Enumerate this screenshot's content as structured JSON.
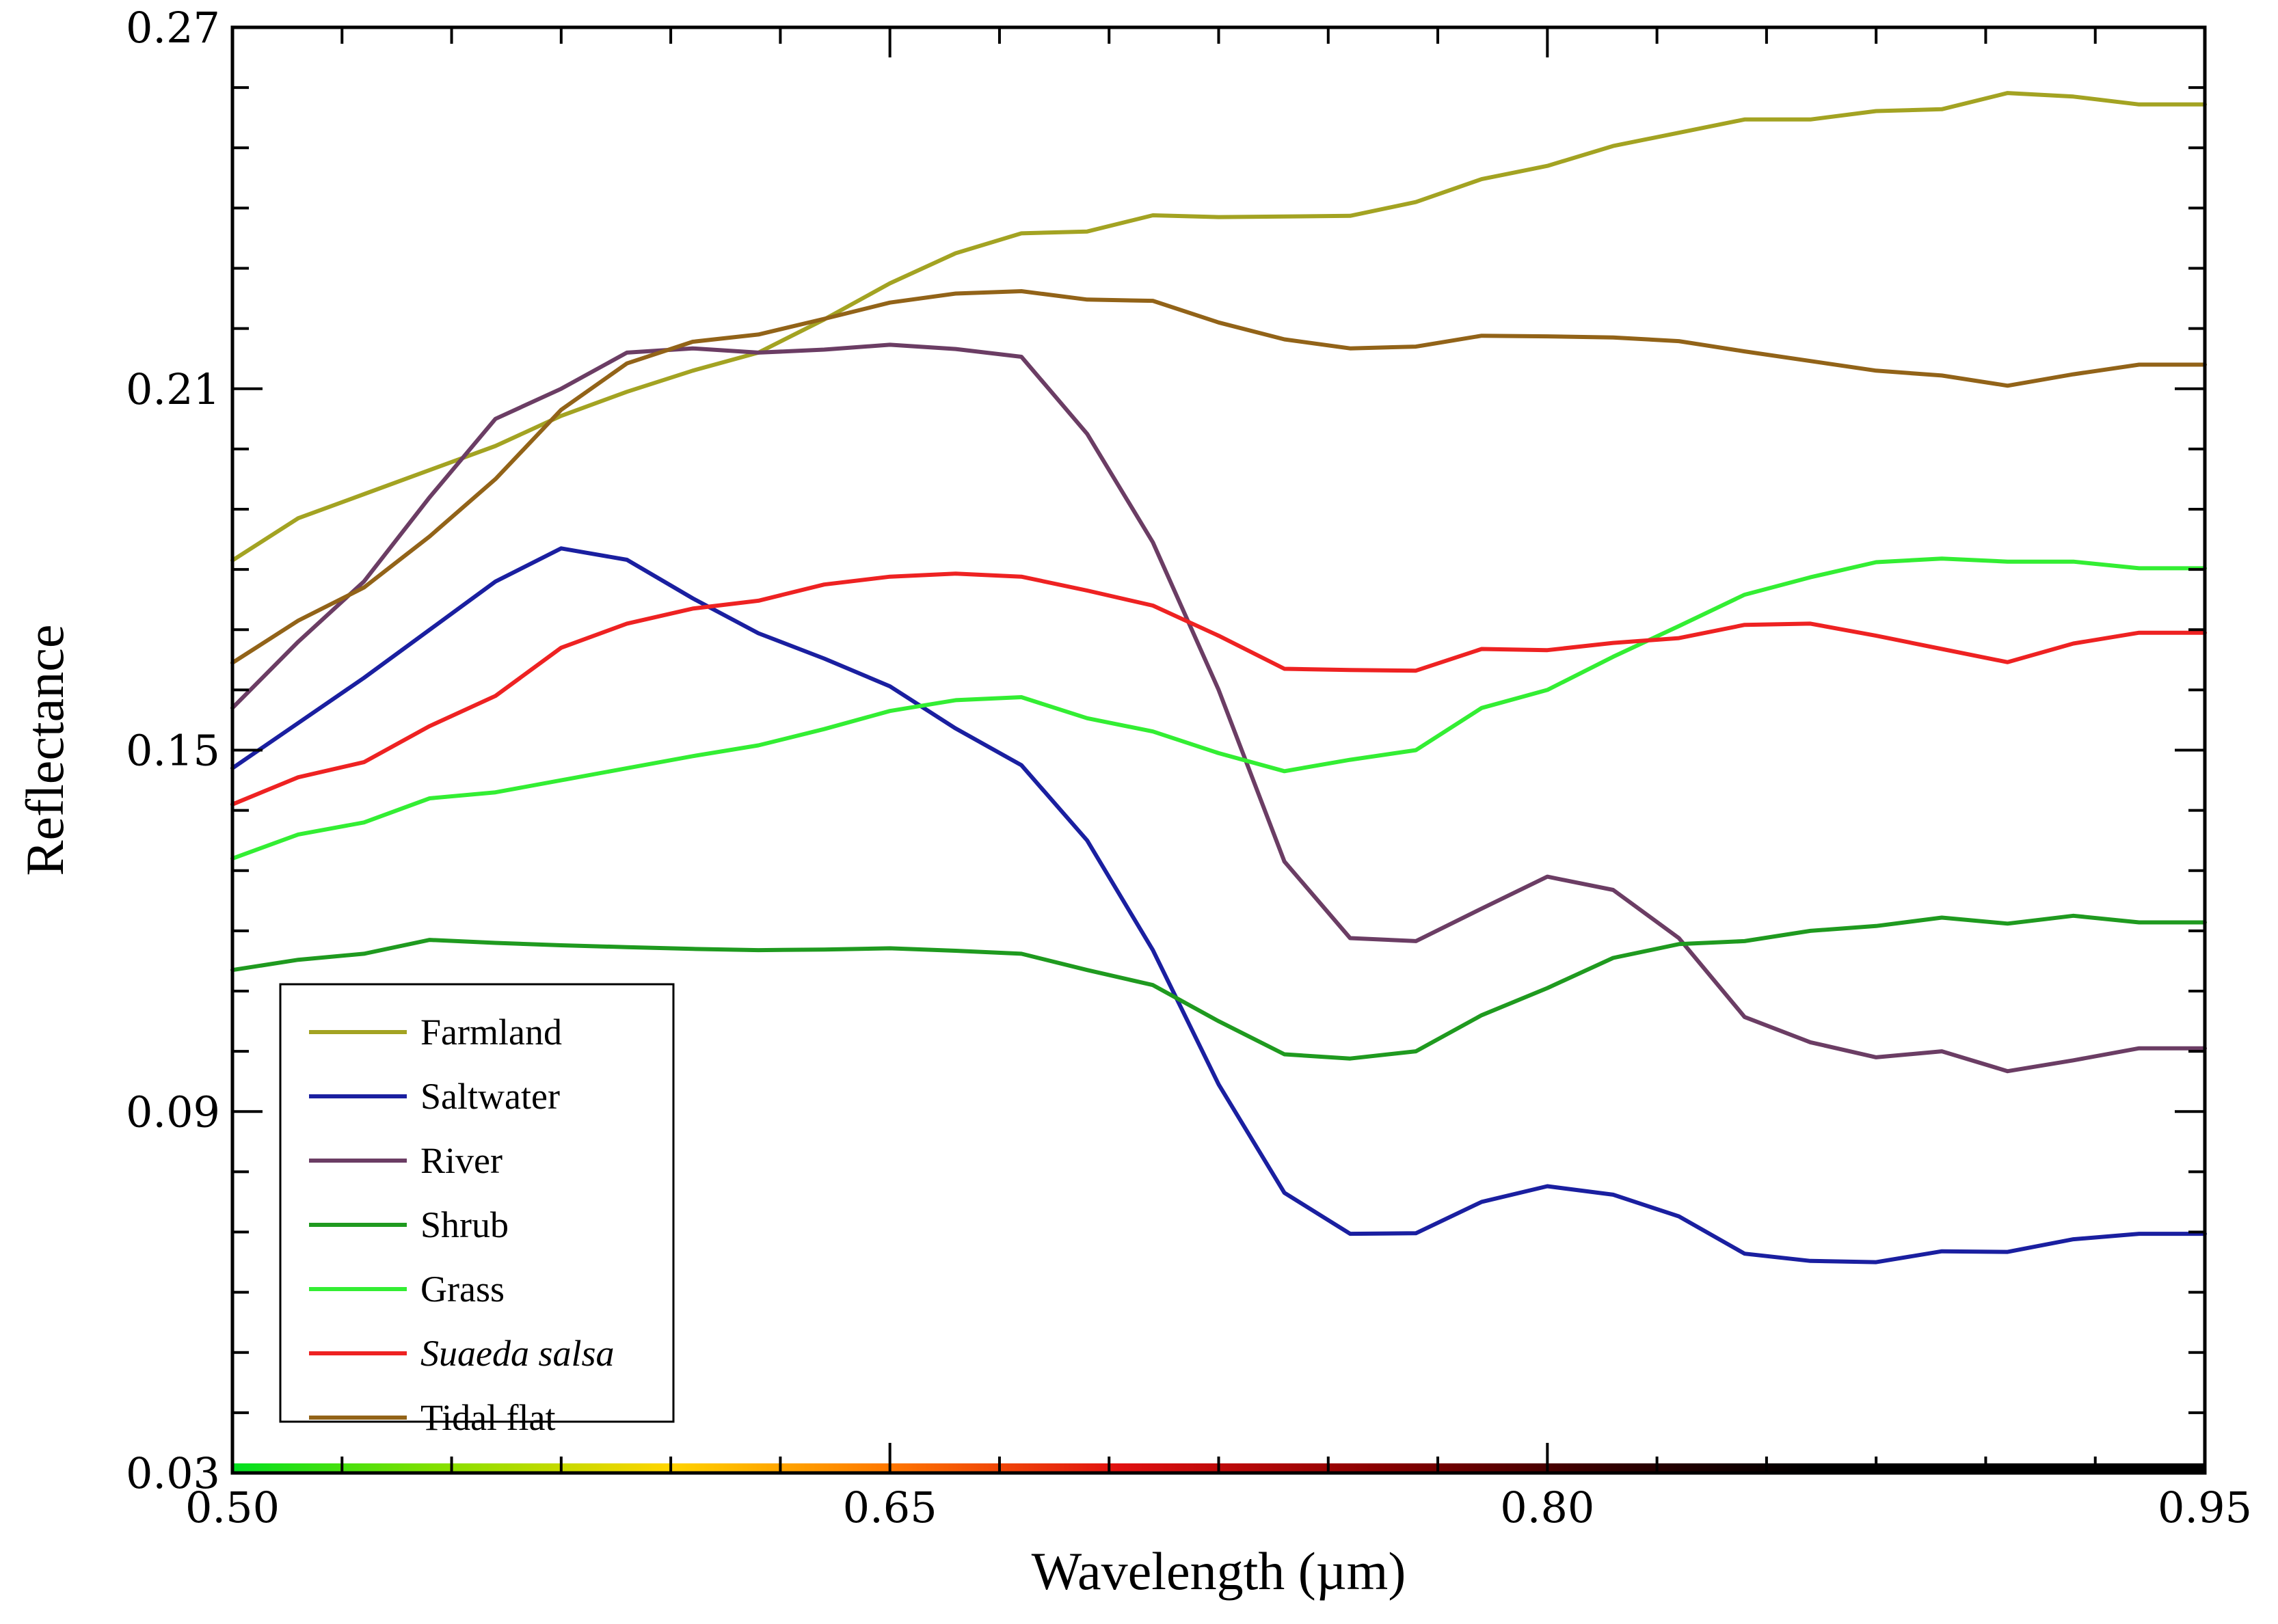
{
  "chart_data": {
    "type": "line",
    "title": "",
    "xlabel": "Wavelength (µm)",
    "ylabel": "Reflectance",
    "xlim": [
      0.5,
      0.95
    ],
    "ylim": [
      0.03,
      0.27
    ],
    "xticks": [
      {
        "value": 0.5,
        "label": "0.50"
      },
      {
        "value": 0.65,
        "label": "0.65"
      },
      {
        "value": 0.8,
        "label": "0.80"
      },
      {
        "value": 0.95,
        "label": "0.95"
      }
    ],
    "yticks": [
      {
        "value": 0.03,
        "label": "0.03"
      },
      {
        "value": 0.09,
        "label": "0.09"
      },
      {
        "value": 0.15,
        "label": "0.15"
      },
      {
        "value": 0.21,
        "label": "0.21"
      },
      {
        "value": 0.27,
        "label": "0.27"
      }
    ],
    "x_minor_step": 0.025,
    "y_minor_step": 0.01,
    "grid": false,
    "legend_position": "bottom-left",
    "spectrum_bar": true,
    "x": [
      0.5,
      0.515,
      0.53,
      0.545,
      0.56,
      0.575,
      0.59,
      0.605,
      0.62,
      0.635,
      0.65,
      0.665,
      0.68,
      0.695,
      0.71,
      0.725,
      0.74,
      0.755,
      0.77,
      0.785,
      0.8,
      0.815,
      0.83,
      0.845,
      0.86,
      0.875,
      0.89,
      0.905,
      0.92,
      0.935,
      0.95
    ],
    "series": [
      {
        "name": "Farmland",
        "italic": false,
        "color": "#a3a322",
        "values": [
          0.1815,
          0.1885,
          0.1925,
          0.1965,
          0.2005,
          0.2055,
          0.2095,
          0.213,
          0.216,
          0.2215,
          0.2275,
          0.2325,
          0.2358,
          0.2361,
          0.2388,
          0.2385,
          0.2386,
          0.2387,
          0.241,
          0.2448,
          0.247,
          0.2503,
          0.2525,
          0.2547,
          0.2547,
          0.2561,
          0.2564,
          0.2591,
          0.2585,
          0.2572,
          0.2572
        ]
      },
      {
        "name": "Saltwater",
        "italic": false,
        "color": "#1a1fa0",
        "values": [
          0.147,
          0.1545,
          0.162,
          0.17,
          0.178,
          0.1835,
          0.1816,
          0.1752,
          0.1694,
          0.1652,
          0.1606,
          0.1536,
          0.1475,
          0.135,
          0.1168,
          0.0945,
          0.0765,
          0.0697,
          0.0698,
          0.075,
          0.0776,
          0.0762,
          0.0726,
          0.0664,
          0.0652,
          0.065,
          0.0668,
          0.0667,
          0.0688,
          0.0697,
          0.0697
        ]
      },
      {
        "name": "River",
        "italic": false,
        "color": "#6b3d64",
        "values": [
          0.157,
          0.168,
          0.178,
          0.192,
          0.205,
          0.21,
          0.216,
          0.2167,
          0.216,
          0.2165,
          0.2173,
          0.2166,
          0.2153,
          0.2025,
          0.1845,
          0.16,
          0.1315,
          0.1188,
          0.1183,
          0.1237,
          0.129,
          0.1268,
          0.1188,
          0.1057,
          0.1015,
          0.099,
          0.1,
          0.0967,
          0.0985,
          0.1005,
          0.1005
        ]
      },
      {
        "name": "Shrub",
        "italic": false,
        "color": "#1f9a1f",
        "values": [
          0.1135,
          0.1152,
          0.1162,
          0.1185,
          0.118,
          0.1176,
          0.1173,
          0.117,
          0.1168,
          0.1169,
          0.1171,
          0.1167,
          0.1162,
          0.1135,
          0.111,
          0.105,
          0.0995,
          0.0988,
          0.1,
          0.106,
          0.1105,
          0.1155,
          0.1178,
          0.1183,
          0.12,
          0.1208,
          0.1222,
          0.1212,
          0.1225,
          0.1214,
          0.1214
        ]
      },
      {
        "name": "Grass",
        "italic": false,
        "color": "#33ee33",
        "values": [
          0.132,
          0.136,
          0.138,
          0.142,
          0.143,
          0.145,
          0.147,
          0.149,
          0.1508,
          0.1535,
          0.1565,
          0.1583,
          0.1588,
          0.1553,
          0.1531,
          0.1495,
          0.1465,
          0.1484,
          0.15,
          0.157,
          0.16,
          0.1655,
          0.1706,
          0.1758,
          0.1787,
          0.1812,
          0.1818,
          0.1813,
          0.1813,
          0.1802,
          0.1802
        ]
      },
      {
        "name": "Suaeda salsa",
        "italic": true,
        "color": "#ee2222",
        "values": [
          0.141,
          0.1455,
          0.148,
          0.154,
          0.159,
          0.167,
          0.171,
          0.1735,
          0.1748,
          0.1775,
          0.1788,
          0.1793,
          0.1788,
          0.1765,
          0.174,
          0.169,
          0.1635,
          0.1633,
          0.1632,
          0.1668,
          0.1666,
          0.1678,
          0.1686,
          0.1708,
          0.171,
          0.169,
          0.1668,
          0.1646,
          0.1677,
          0.1695,
          0.1695
        ]
      },
      {
        "name": "Tidal flat",
        "italic": false,
        "color": "#926318",
        "values": [
          0.1645,
          0.1715,
          0.177,
          0.1855,
          0.195,
          0.2065,
          0.2142,
          0.2178,
          0.219,
          0.2216,
          0.2243,
          0.2258,
          0.2262,
          0.2248,
          0.2246,
          0.221,
          0.2182,
          0.2167,
          0.217,
          0.2188,
          0.2187,
          0.2185,
          0.2179,
          0.2162,
          0.2146,
          0.213,
          0.2122,
          0.2105,
          0.2124,
          0.214,
          0.214
        ]
      }
    ]
  }
}
